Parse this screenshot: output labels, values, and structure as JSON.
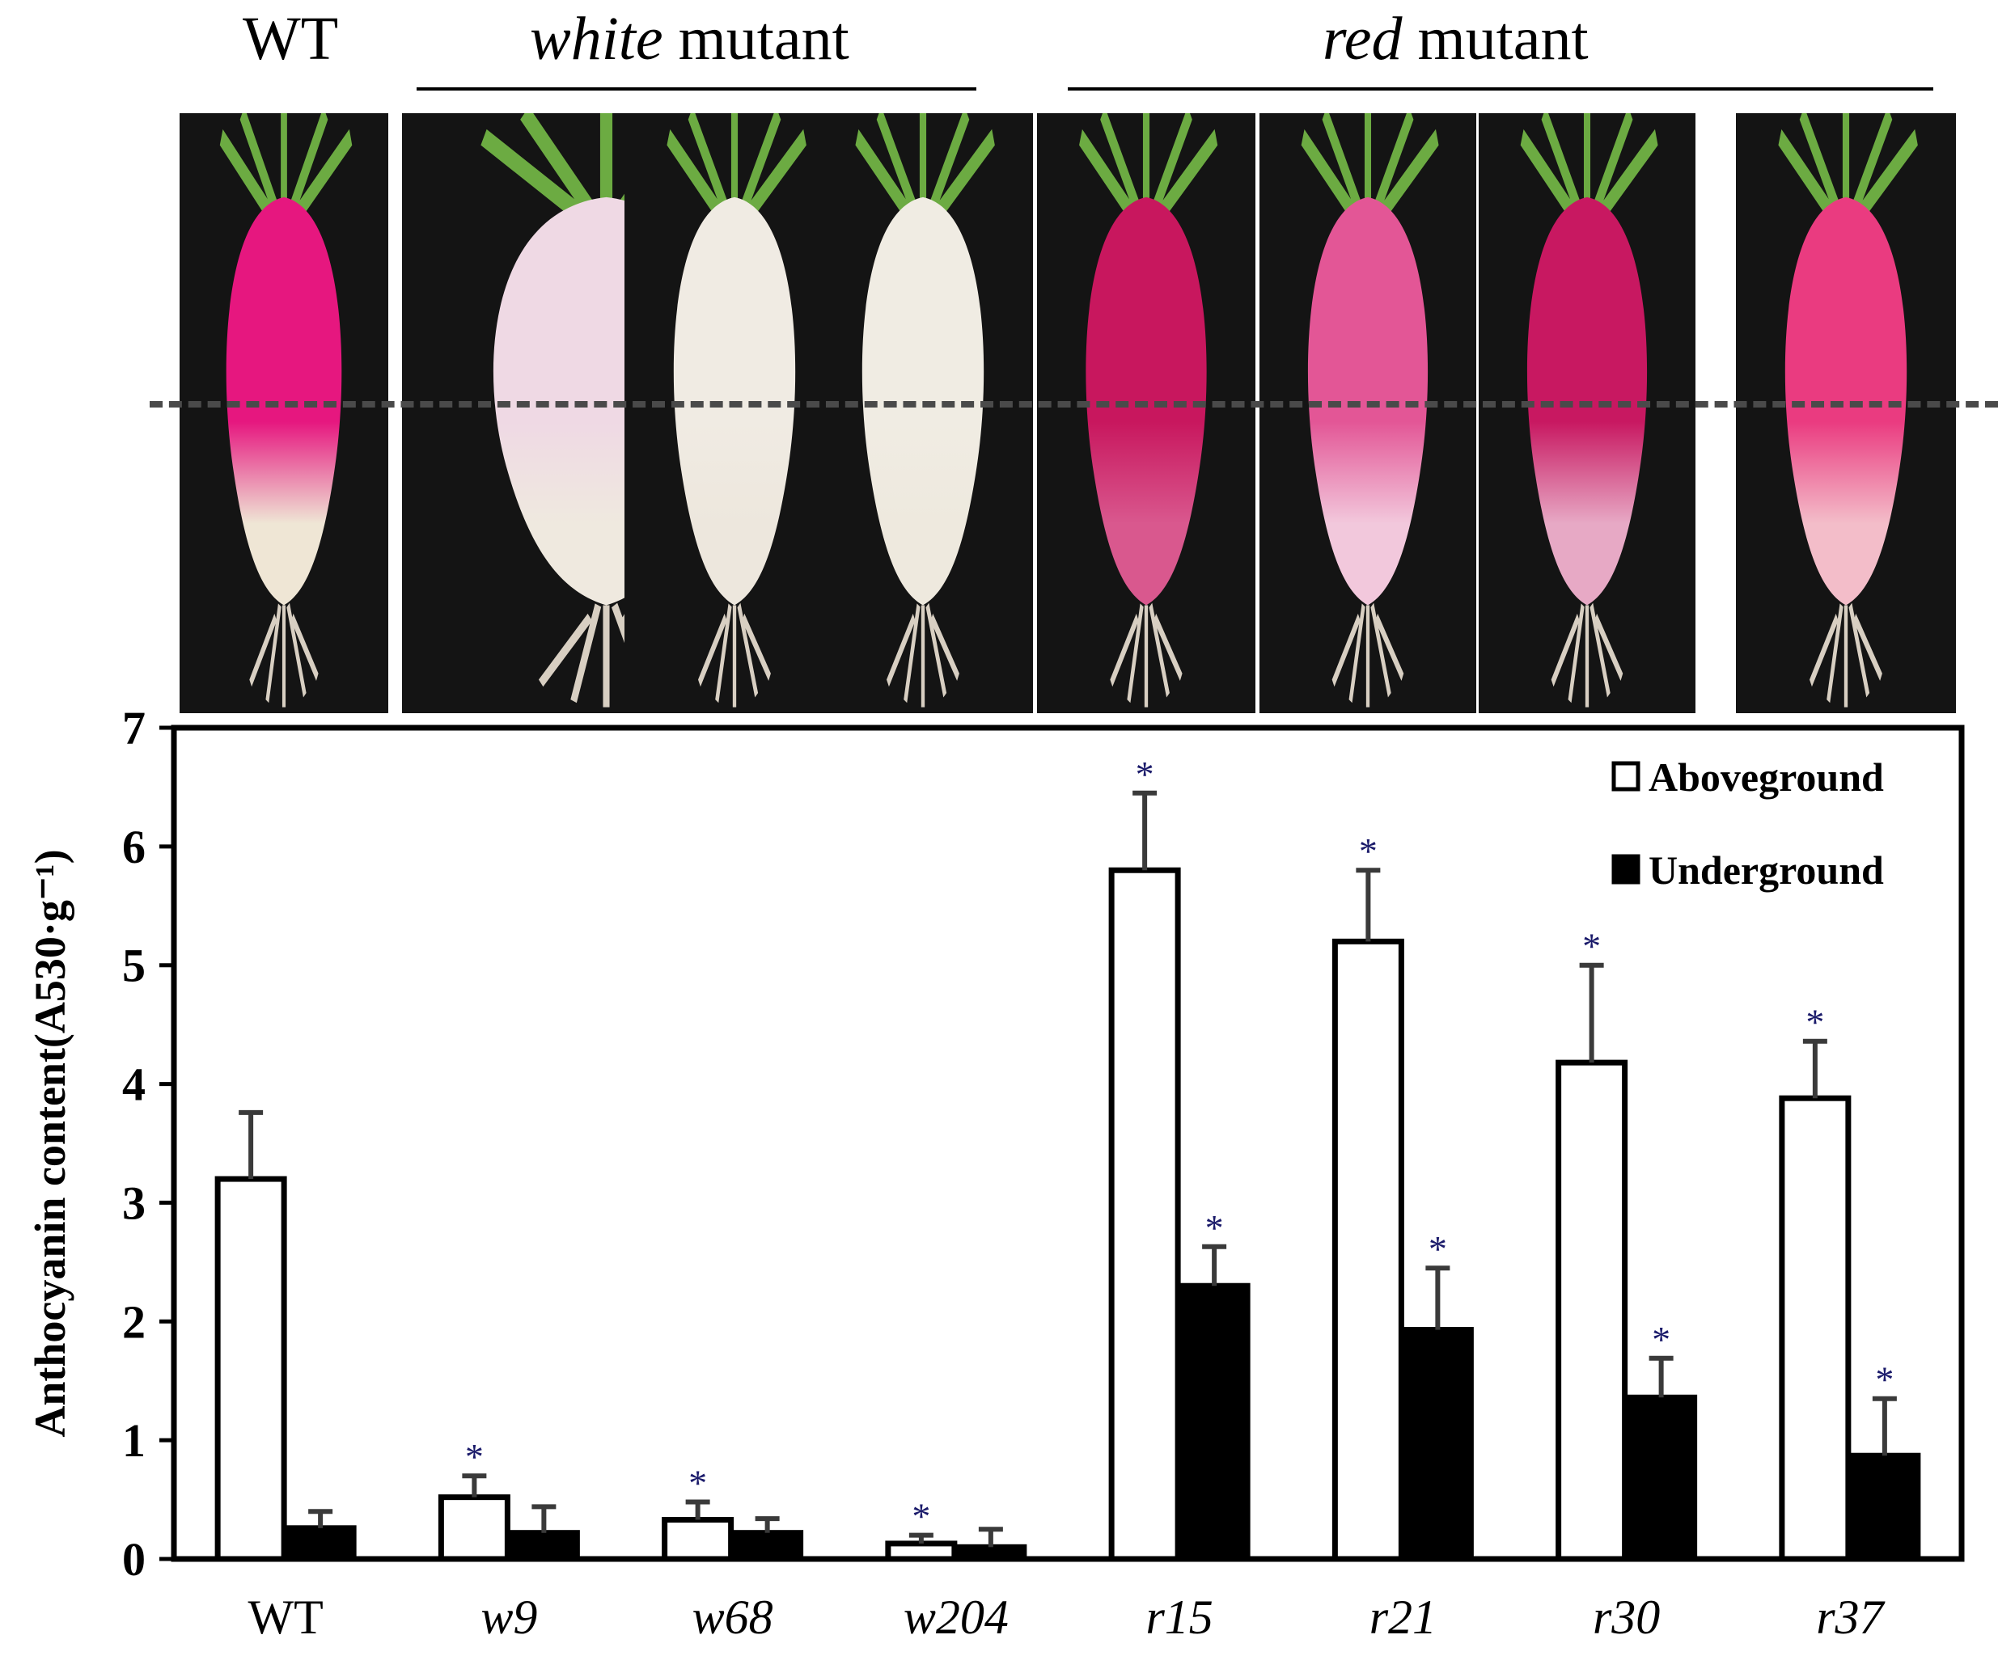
{
  "header": {
    "wt_label": "WT",
    "white_group": {
      "italic": "white",
      "rest": " mutant"
    },
    "red_group": {
      "italic": "red",
      "rest": " mutant"
    }
  },
  "photos": [
    {
      "sample": "WT",
      "root_color": "#e6177f",
      "lower_color": "#efe6d5"
    },
    {
      "sample": "w9",
      "root_color": "#efd9e4",
      "lower_color": "#efe9df"
    },
    {
      "sample": "w68",
      "root_color": "#f0ebe3",
      "lower_color": "#ede7dd"
    },
    {
      "sample": "w204",
      "root_color": "#f0ece3",
      "lower_color": "#eee9de"
    },
    {
      "sample": "r15",
      "root_color": "#c8175e",
      "lower_color": "#d9588e"
    },
    {
      "sample": "r21",
      "root_color": "#e35696",
      "lower_color": "#f2c8dc"
    },
    {
      "sample": "r30",
      "root_color": "#c81861",
      "lower_color": "#e7a9c5"
    },
    {
      "sample": "r37",
      "root_color": "#ea3b80",
      "lower_color": "#f3bdc9"
    }
  ],
  "chart_data": {
    "type": "bar",
    "ylabel": "Anthocyanin content(A530·g⁻¹)",
    "ylim": [
      0,
      7
    ],
    "yticks": [
      "0",
      "1",
      "2",
      "3",
      "4",
      "5",
      "6",
      "7"
    ],
    "categories": [
      "WT",
      "w9",
      "w68",
      "w204",
      "r15",
      "r21",
      "r30",
      "r37"
    ],
    "italic_categories": [
      false,
      true,
      true,
      true,
      true,
      true,
      true,
      true
    ],
    "series": [
      {
        "name": "Aboveground",
        "fill": "#ffffff",
        "values": [
          3.2,
          0.52,
          0.33,
          0.13,
          5.8,
          5.2,
          4.18,
          3.88
        ],
        "errors": [
          0.56,
          0.18,
          0.15,
          0.07,
          0.65,
          0.6,
          0.82,
          0.48
        ],
        "significant": [
          false,
          true,
          true,
          true,
          true,
          true,
          true,
          true
        ]
      },
      {
        "name": "Underground",
        "fill": "#000000",
        "values": [
          0.26,
          0.22,
          0.22,
          0.1,
          2.3,
          1.93,
          1.36,
          0.87
        ],
        "errors": [
          0.14,
          0.22,
          0.12,
          0.15,
          0.33,
          0.52,
          0.33,
          0.48
        ],
        "significant": [
          false,
          false,
          false,
          false,
          true,
          true,
          true,
          true
        ]
      }
    ],
    "significance_mark": "*",
    "legend_position": "top-right",
    "grid": false
  }
}
